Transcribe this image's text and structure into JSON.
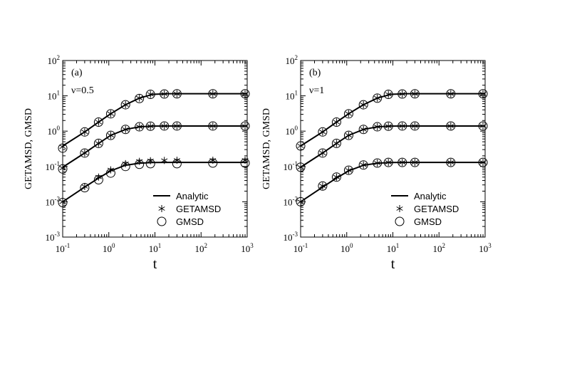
{
  "chart_data": [
    {
      "type": "line",
      "panel_label": "(a)",
      "param_label": "ν=0.5",
      "xlabel": "t",
      "ylabel": "GETAMSD, GMSD",
      "x_scale": "log",
      "y_scale": "log",
      "xlim": [
        0.1,
        1000
      ],
      "ylim": [
        0.001,
        100
      ],
      "x_ticks": [
        {
          "base": "10",
          "exp": "-1"
        },
        {
          "base": "10",
          "exp": "0"
        },
        {
          "base": "10",
          "exp": "1"
        },
        {
          "base": "10",
          "exp": "2"
        },
        {
          "base": "10",
          "exp": "3"
        }
      ],
      "y_ticks": [
        {
          "base": "10",
          "exp": "-3"
        },
        {
          "base": "10",
          "exp": "-2"
        },
        {
          "base": "10",
          "exp": "-1"
        },
        {
          "base": "10",
          "exp": "0"
        },
        {
          "base": "10",
          "exp": "1"
        },
        {
          "base": "10",
          "exp": "2"
        }
      ],
      "legend": {
        "position": "bottom-right",
        "entries": [
          "Analytic",
          "GETAMSD",
          "GMSD"
        ]
      },
      "grid": false,
      "series": [
        {
          "name": "Analytic",
          "style": "line",
          "curves": [
            {
              "x": [
                0.1,
                0.3,
                0.6,
                1.1,
                2.3,
                4.6,
                9,
                20,
                50,
                200,
                1000
              ],
              "y": [
                0.38,
                0.95,
                1.8,
                3.1,
                5.6,
                8.6,
                11,
                11.5,
                11.5,
                11.5,
                11.5
              ]
            },
            {
              "x": [
                0.1,
                0.3,
                0.6,
                1.1,
                2.3,
                4.6,
                9,
                20,
                50,
                200,
                1000
              ],
              "y": [
                0.095,
                0.24,
                0.45,
                0.76,
                1.12,
                1.33,
                1.39,
                1.4,
                1.4,
                1.4,
                1.4
              ]
            },
            {
              "x": [
                0.1,
                0.3,
                0.6,
                1.1,
                2.3,
                4.6,
                9,
                20,
                50,
                200,
                1000
              ],
              "y": [
                0.01,
                0.026,
                0.047,
                0.075,
                0.108,
                0.124,
                0.129,
                0.13,
                0.13,
                0.13,
                0.13
              ]
            }
          ]
        },
        {
          "name": "GETAMSD",
          "style": "star",
          "curves": [
            {
              "x": [
                0.1,
                0.3,
                0.6,
                1.1,
                2.3,
                4.6,
                8,
                16,
                30,
                180,
                900
              ],
              "y": [
                0.36,
                0.95,
                1.8,
                3.1,
                5.6,
                8.6,
                11,
                11.3,
                11.4,
                11.4,
                11.4
              ]
            },
            {
              "x": [
                0.1,
                0.3,
                0.6,
                1.1,
                2.3,
                4.6,
                8,
                16,
                30,
                180,
                900
              ],
              "y": [
                0.09,
                0.24,
                0.45,
                0.76,
                1.12,
                1.33,
                1.38,
                1.4,
                1.4,
                1.4,
                1.4
              ]
            },
            {
              "x": [
                0.1,
                0.3,
                0.6,
                1.1,
                2.3,
                4.6,
                8,
                16,
                30,
                180,
                900
              ],
              "y": [
                0.01,
                0.027,
                0.05,
                0.08,
                0.12,
                0.14,
                0.145,
                0.148,
                0.15,
                0.15,
                0.15
              ]
            }
          ]
        },
        {
          "name": "GMSD",
          "style": "circle",
          "curves": [
            {
              "x": [
                0.1,
                0.3,
                0.6,
                1.1,
                2.3,
                4.6,
                8,
                16,
                30,
                180,
                900
              ],
              "y": [
                0.33,
                0.95,
                1.8,
                3.1,
                5.6,
                8.4,
                11,
                11.3,
                11.4,
                11.4,
                11.4
              ]
            },
            {
              "x": [
                0.1,
                0.3,
                0.6,
                1.1,
                2.3,
                4.6,
                8,
                16,
                30,
                180,
                900
              ],
              "y": [
                0.085,
                0.24,
                0.45,
                0.76,
                1.12,
                1.33,
                1.38,
                1.4,
                1.4,
                1.4,
                1.4
              ]
            },
            {
              "x": [
                0.1,
                0.3,
                0.6,
                1.1,
                2.3,
                4.6,
                8,
                30,
                180,
                900
              ],
              "y": [
                0.0095,
                0.025,
                0.042,
                0.065,
                0.1,
                0.115,
                0.12,
                0.12,
                0.125,
                0.125
              ]
            }
          ]
        }
      ]
    },
    {
      "type": "line",
      "panel_label": "(b)",
      "param_label": "ν=1",
      "xlabel": "t",
      "ylabel": "GETAMSD, GMSD",
      "x_scale": "log",
      "y_scale": "log",
      "xlim": [
        0.1,
        1000
      ],
      "ylim": [
        0.001,
        100
      ],
      "x_ticks": [
        {
          "base": "10",
          "exp": "-1"
        },
        {
          "base": "10",
          "exp": "0"
        },
        {
          "base": "10",
          "exp": "1"
        },
        {
          "base": "10",
          "exp": "2"
        },
        {
          "base": "10",
          "exp": "3"
        }
      ],
      "y_ticks": [
        {
          "base": "10",
          "exp": "-3"
        },
        {
          "base": "10",
          "exp": "-2"
        },
        {
          "base": "10",
          "exp": "-1"
        },
        {
          "base": "10",
          "exp": "0"
        },
        {
          "base": "10",
          "exp": "1"
        },
        {
          "base": "10",
          "exp": "2"
        }
      ],
      "legend": {
        "position": "bottom-right",
        "entries": [
          "Analytic",
          "GETAMSD",
          "GMSD"
        ]
      },
      "grid": false,
      "series": [
        {
          "name": "Analytic",
          "style": "line",
          "curves": [
            {
              "x": [
                0.1,
                0.3,
                0.6,
                1.1,
                2.3,
                4.6,
                9,
                20,
                50,
                200,
                1000
              ],
              "y": [
                0.38,
                0.95,
                1.8,
                3.1,
                5.6,
                8.6,
                11,
                11.5,
                11.5,
                11.5,
                11.5
              ]
            },
            {
              "x": [
                0.1,
                0.3,
                0.6,
                1.1,
                2.3,
                4.6,
                9,
                20,
                50,
                200,
                1000
              ],
              "y": [
                0.095,
                0.24,
                0.45,
                0.76,
                1.12,
                1.33,
                1.39,
                1.4,
                1.4,
                1.4,
                1.4
              ]
            },
            {
              "x": [
                0.1,
                0.3,
                0.6,
                1.1,
                2.3,
                4.6,
                9,
                20,
                50,
                200,
                1000
              ],
              "y": [
                0.01,
                0.026,
                0.047,
                0.075,
                0.108,
                0.124,
                0.129,
                0.13,
                0.13,
                0.13,
                0.13
              ]
            }
          ]
        },
        {
          "name": "GETAMSD",
          "style": "star",
          "curves": [
            {
              "x": [
                0.1,
                0.3,
                0.6,
                1.1,
                2.3,
                4.6,
                8,
                16,
                30,
                180,
                900
              ],
              "y": [
                0.38,
                0.95,
                1.8,
                3.1,
                5.6,
                8.6,
                11,
                11.3,
                11.4,
                11.4,
                11.4
              ]
            },
            {
              "x": [
                0.1,
                0.3,
                0.6,
                1.1,
                2.3,
                4.6,
                8,
                16,
                30,
                180,
                900
              ],
              "y": [
                0.095,
                0.24,
                0.45,
                0.76,
                1.12,
                1.33,
                1.38,
                1.4,
                1.4,
                1.4,
                1.4
              ]
            },
            {
              "x": [
                0.1,
                0.3,
                0.6,
                1.1,
                2.3,
                4.6,
                8,
                16,
                30,
                180,
                900
              ],
              "y": [
                0.01,
                0.028,
                0.05,
                0.078,
                0.11,
                0.125,
                0.13,
                0.13,
                0.13,
                0.13,
                0.13
              ]
            }
          ]
        },
        {
          "name": "GMSD",
          "style": "circle",
          "curves": [
            {
              "x": [
                0.1,
                0.3,
                0.6,
                1.1,
                2.3,
                4.6,
                8,
                16,
                30,
                180,
                900
              ],
              "y": [
                0.38,
                0.95,
                1.8,
                3.1,
                5.6,
                8.6,
                11,
                11.3,
                11.4,
                11.4,
                11.4
              ]
            },
            {
              "x": [
                0.1,
                0.3,
                0.6,
                1.1,
                2.3,
                4.6,
                8,
                16,
                30,
                180,
                900
              ],
              "y": [
                0.095,
                0.24,
                0.45,
                0.76,
                1.12,
                1.33,
                1.38,
                1.4,
                1.4,
                1.4,
                1.4
              ]
            },
            {
              "x": [
                0.1,
                0.3,
                0.6,
                1.1,
                2.3,
                4.6,
                8,
                16,
                30,
                180,
                900
              ],
              "y": [
                0.01,
                0.028,
                0.05,
                0.078,
                0.11,
                0.125,
                0.13,
                0.13,
                0.13,
                0.13,
                0.13
              ]
            }
          ]
        }
      ]
    }
  ]
}
